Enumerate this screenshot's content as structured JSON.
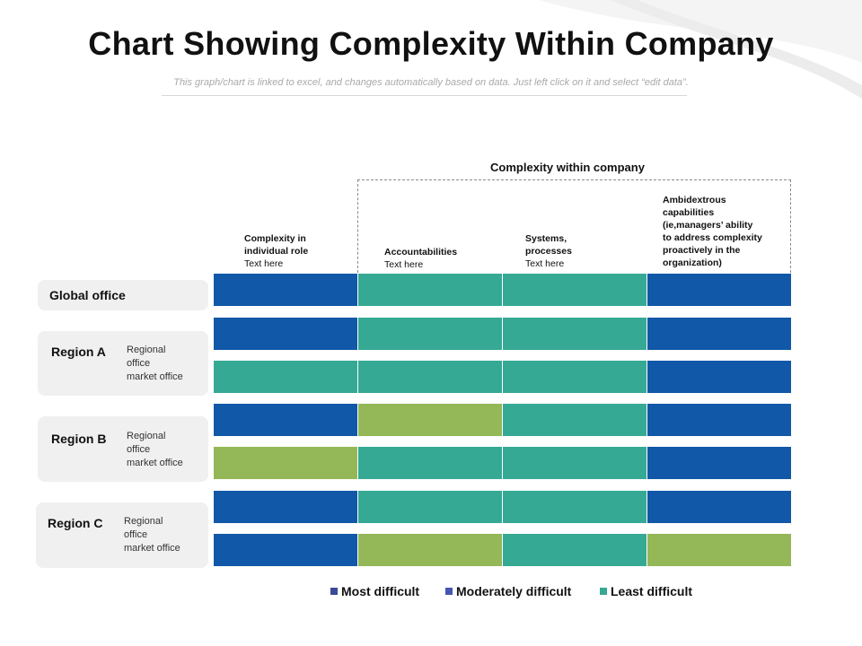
{
  "title": "Chart Showing Complexity Within Company",
  "subtitle": "This graph/chart is linked to excel, and changes automatically based on data. Just left click on it and select “edit data”.",
  "group_label": "Complexity within company",
  "columns": [
    {
      "heading": "Complexity in\nindividual role",
      "sub": "Text here"
    },
    {
      "heading": "Accountabilities",
      "sub": "Text here"
    },
    {
      "heading": "Systems,\nprocesses",
      "sub": "Text here"
    },
    {
      "heading": "Ambidextrous\ncapabilities\n(ie,managers’ ability\nto address complexity\nproactively in the\norganization)",
      "sub": ""
    }
  ],
  "rows_labels": {
    "global": {
      "name": "Global office"
    },
    "region_a": {
      "name": "Region A",
      "sub": "Regional\noffice\nmarket office"
    },
    "region_b": {
      "name": "Region B",
      "sub": "Regional\noffice\nmarket office"
    },
    "region_c": {
      "name": "Region C",
      "sub": "Regional\noffice\nmarket office"
    }
  },
  "colors": {
    "most": "#1258a8",
    "moderate": "#94b757",
    "least": "#35a994",
    "legend_most": "#3a4a9a",
    "legend_moderate": "#4457b0",
    "legend_least": "#35a994"
  },
  "grid": [
    [
      "most",
      "least",
      "least",
      "most"
    ],
    [
      "most",
      "least",
      "least",
      "most"
    ],
    [
      "least",
      "least",
      "least",
      "most"
    ],
    [
      "most",
      "moderate",
      "least",
      "most"
    ],
    [
      "moderate",
      "least",
      "least",
      "most"
    ],
    [
      "most",
      "least",
      "least",
      "most"
    ],
    [
      "most",
      "moderate",
      "least",
      "moderate"
    ]
  ],
  "legend": [
    {
      "label": "Most difficult",
      "color_key": "legend_most"
    },
    {
      "label": "Moderately difficult",
      "color_key": "legend_moderate"
    },
    {
      "label": "Least difficult",
      "color_key": "legend_least"
    }
  ]
}
